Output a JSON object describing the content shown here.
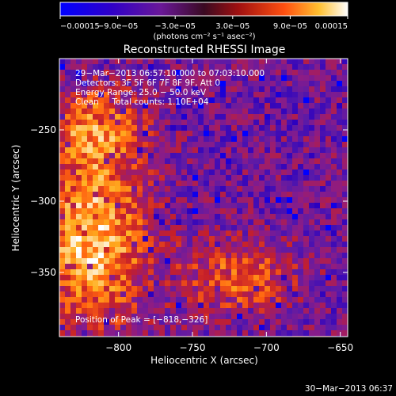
{
  "chart_data": {
    "type": "heatmap",
    "title": "Reconstructed RHESSI Image",
    "xlabel": "Heliocentric X (arcsec)",
    "ylabel": "Heliocentric Y (arcsec)",
    "xlim": [
      -840,
      -645
    ],
    "ylim": [
      -395,
      -200
    ],
    "x_ticks": [
      -800,
      -750,
      -700,
      -650
    ],
    "x_tick_labels": [
      "−800",
      "−750",
      "−700",
      "−650"
    ],
    "y_ticks": [
      -250,
      -300,
      -350
    ],
    "y_tick_labels": [
      "−250",
      "−300",
      "−350"
    ],
    "colorbar": {
      "min": -0.00015,
      "max": 0.00015,
      "tick_values": [
        -0.00015,
        -9e-05,
        -3e-05,
        3e-05,
        9e-05,
        0.00015
      ],
      "tick_labels": [
        "−0.00015",
        "−9.0e−05",
        "−3.0e−05",
        "3.0e−05",
        "9.0e−05",
        "0.00015"
      ],
      "units_label": "(photons cm⁻² s⁻¹ asec⁻²)"
    },
    "annotations": [
      "29−Mar−2013 06:57:10.000 to 07:03:10.000",
      "Detectors: 3F 5F 6F 7F 8F 9F, Att 0",
      "Energy Range: 25.0 − 50.0 keV",
      "Clean     Total counts: 1.10E+04"
    ],
    "peak_label": "Position of Peak = [−818,−326]",
    "peak": [
      -818,
      -326
    ],
    "grid": false,
    "legend": "colorbar-top"
  },
  "footer": {
    "timestamp": "30−Mar−2013 06:37"
  },
  "colors": {
    "background": "#000000",
    "foreground": "#ffffff",
    "colormap": [
      "#0000ff",
      "#2a00c0",
      "#5a1aa8",
      "#8c1c86",
      "#c51f2a",
      "#ff6010",
      "#ffb020",
      "#ffffff"
    ]
  }
}
